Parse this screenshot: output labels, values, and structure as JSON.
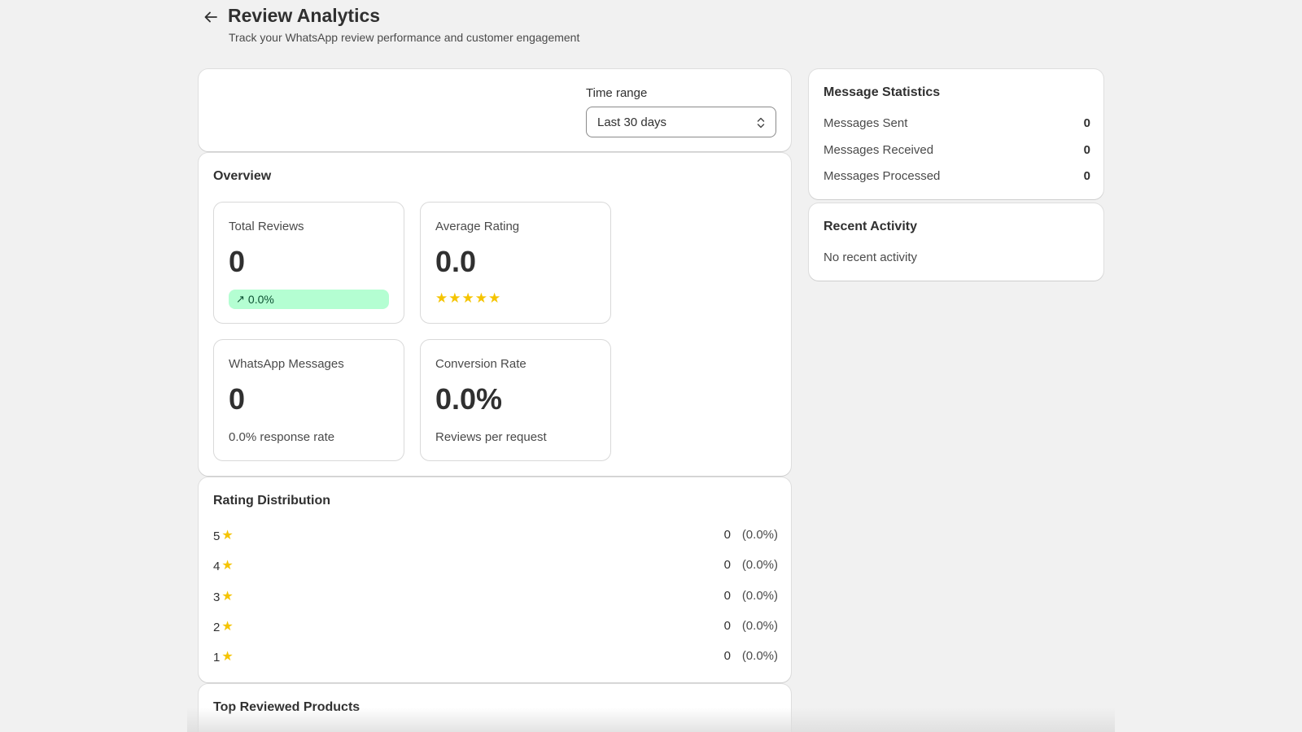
{
  "header": {
    "title": "Review Analytics",
    "subtitle": "Track your WhatsApp review performance and customer engagement",
    "back_icon": "arrow-left-icon"
  },
  "filter": {
    "time_range_label": "Time range",
    "time_range_value": "Last 30 days"
  },
  "overview": {
    "title": "Overview",
    "total_reviews": {
      "label": "Total Reviews",
      "value": "0",
      "trend": "0.0%",
      "trend_color": "#b4fed2"
    },
    "average_rating": {
      "label": "Average Rating",
      "value": "0.0",
      "stars": 5,
      "star_color": "#f5c400"
    },
    "whatsapp_messages": {
      "label": "WhatsApp Messages",
      "value": "0",
      "foot": "0.0% response rate"
    },
    "conversion_rate": {
      "label": "Conversion Rate",
      "value": "0.0%",
      "foot": "Reviews per request"
    }
  },
  "rating_distribution": {
    "title": "Rating Distribution",
    "rows": [
      {
        "stars": "5",
        "count": "0",
        "percent": "(0.0%)"
      },
      {
        "stars": "4",
        "count": "0",
        "percent": "(0.0%)"
      },
      {
        "stars": "3",
        "count": "0",
        "percent": "(0.0%)"
      },
      {
        "stars": "2",
        "count": "0",
        "percent": "(0.0%)"
      },
      {
        "stars": "1",
        "count": "0",
        "percent": "(0.0%)"
      }
    ]
  },
  "top_products": {
    "title": "Top Reviewed Products"
  },
  "message_statistics": {
    "title": "Message Statistics",
    "rows": [
      {
        "label": "Messages Sent",
        "value": "0"
      },
      {
        "label": "Messages Received",
        "value": "0"
      },
      {
        "label": "Messages Processed",
        "value": "0"
      }
    ]
  },
  "recent_activity": {
    "title": "Recent Activity",
    "empty": "No recent activity"
  }
}
